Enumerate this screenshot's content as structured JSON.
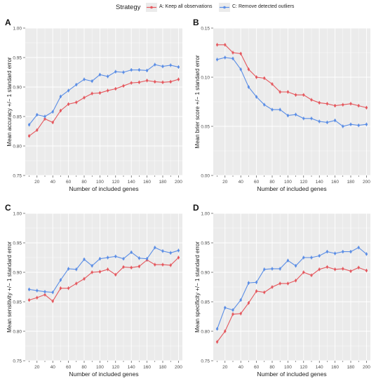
{
  "legend": {
    "title": "Strategy",
    "entries": [
      {
        "label": "A: Keep all observations",
        "color": "#e5585e"
      },
      {
        "label": "C: Remove detected outliers",
        "color": "#5b8ee6"
      }
    ]
  },
  "style": {
    "panel_background": "#ebebeb",
    "grid_color": "#ffffff",
    "series_colors": [
      "#e5585e",
      "#5b8ee6"
    ]
  },
  "chart_data": [
    {
      "type": "line",
      "panel_label": "A",
      "xlabel": "Number of included genes",
      "ylabel": "Mean accuracy +/− 1 standard error",
      "xlim": [
        5,
        205
      ],
      "ylim": [
        0.75,
        1.0
      ],
      "xticks": [
        20,
        40,
        60,
        80,
        100,
        120,
        140,
        160,
        180,
        200
      ],
      "yticks": [
        0.75,
        0.8,
        0.85,
        0.9,
        0.95,
        1.0
      ],
      "ytick_labels": [
        "0.75",
        "0.80",
        "0.85",
        "0.90",
        "0.95",
        "1.00"
      ],
      "grid": true,
      "x": [
        10,
        20,
        30,
        40,
        50,
        60,
        70,
        80,
        90,
        100,
        110,
        120,
        130,
        140,
        150,
        160,
        170,
        180,
        190,
        200
      ],
      "series": [
        {
          "name": "A: Keep all observations",
          "values": [
            0.817,
            0.827,
            0.846,
            0.84,
            0.86,
            0.871,
            0.874,
            0.882,
            0.889,
            0.89,
            0.894,
            0.897,
            0.902,
            0.907,
            0.908,
            0.911,
            0.909,
            0.908,
            0.909,
            0.913
          ]
        },
        {
          "name": "C: Remove detected outliers",
          "values": [
            0.836,
            0.853,
            0.85,
            0.858,
            0.884,
            0.894,
            0.904,
            0.913,
            0.91,
            0.921,
            0.918,
            0.926,
            0.925,
            0.929,
            0.929,
            0.928,
            0.938,
            0.935,
            0.937,
            0.934
          ]
        }
      ]
    },
    {
      "type": "line",
      "panel_label": "B",
      "xlabel": "Number of included genes",
      "ylabel": "Mean brier score +/− 1 standard error",
      "xlim": [
        5,
        205
      ],
      "ylim": [
        0.0,
        0.15
      ],
      "xticks": [
        20,
        40,
        60,
        80,
        100,
        120,
        140,
        160,
        180,
        200
      ],
      "yticks": [
        0.0,
        0.05,
        0.1,
        0.15
      ],
      "ytick_labels": [
        "0.00",
        "0.05",
        "0.10",
        "0.15"
      ],
      "grid": true,
      "x": [
        10,
        20,
        30,
        40,
        50,
        60,
        70,
        80,
        90,
        100,
        110,
        120,
        130,
        140,
        150,
        160,
        170,
        180,
        190,
        200
      ],
      "series": [
        {
          "name": "A: Keep all observations",
          "values": [
            0.133,
            0.133,
            0.125,
            0.124,
            0.108,
            0.1,
            0.099,
            0.093,
            0.085,
            0.085,
            0.082,
            0.082,
            0.077,
            0.074,
            0.073,
            0.071,
            0.072,
            0.073,
            0.071,
            0.069
          ]
        },
        {
          "name": "C: Remove detected outliers",
          "values": [
            0.118,
            0.12,
            0.119,
            0.108,
            0.09,
            0.08,
            0.072,
            0.067,
            0.067,
            0.061,
            0.062,
            0.058,
            0.058,
            0.055,
            0.054,
            0.056,
            0.05,
            0.052,
            0.051,
            0.052
          ]
        }
      ]
    },
    {
      "type": "line",
      "panel_label": "C",
      "xlabel": "Number of included genes",
      "ylabel": "Mean sensitivity +/− 1 standard error",
      "xlim": [
        5,
        205
      ],
      "ylim": [
        0.75,
        1.0
      ],
      "xticks": [
        20,
        40,
        60,
        80,
        100,
        120,
        140,
        160,
        180,
        200
      ],
      "yticks": [
        0.75,
        0.8,
        0.85,
        0.9,
        0.95,
        1.0
      ],
      "ytick_labels": [
        "0.75",
        "0.80",
        "0.85",
        "0.90",
        "0.95",
        "1.00"
      ],
      "grid": true,
      "x": [
        10,
        20,
        30,
        40,
        50,
        60,
        70,
        80,
        90,
        100,
        110,
        120,
        130,
        140,
        150,
        160,
        170,
        180,
        190,
        200
      ],
      "series": [
        {
          "name": "A: Keep all observations",
          "values": [
            0.853,
            0.857,
            0.862,
            0.851,
            0.873,
            0.873,
            0.881,
            0.889,
            0.9,
            0.901,
            0.905,
            0.896,
            0.909,
            0.908,
            0.91,
            0.921,
            0.913,
            0.913,
            0.912,
            0.925
          ]
        },
        {
          "name": "C: Remove detected outliers",
          "values": [
            0.871,
            0.869,
            0.867,
            0.866,
            0.887,
            0.906,
            0.905,
            0.922,
            0.911,
            0.923,
            0.925,
            0.927,
            0.923,
            0.934,
            0.924,
            0.923,
            0.942,
            0.936,
            0.933,
            0.937
          ]
        }
      ]
    },
    {
      "type": "line",
      "panel_label": "D",
      "xlabel": "Number of included genes",
      "ylabel": "Mean specificity +/− 1 standard error",
      "xlim": [
        5,
        205
      ],
      "ylim": [
        0.75,
        1.0
      ],
      "xticks": [
        20,
        40,
        60,
        80,
        100,
        120,
        140,
        160,
        180,
        200
      ],
      "yticks": [
        0.75,
        0.8,
        0.85,
        0.9,
        0.95,
        1.0
      ],
      "ytick_labels": [
        "0.75",
        "0.80",
        "0.85",
        "0.90",
        "0.95",
        "1.00"
      ],
      "grid": true,
      "x": [
        10,
        20,
        30,
        40,
        50,
        60,
        70,
        80,
        90,
        100,
        110,
        120,
        130,
        140,
        150,
        160,
        170,
        180,
        190,
        200
      ],
      "series": [
        {
          "name": "A: Keep all observations",
          "values": [
            0.782,
            0.8,
            0.829,
            0.83,
            0.848,
            0.868,
            0.866,
            0.875,
            0.881,
            0.881,
            0.886,
            0.9,
            0.895,
            0.905,
            0.909,
            0.905,
            0.906,
            0.902,
            0.908,
            0.903
          ]
        },
        {
          "name": "C: Remove detected outliers",
          "values": [
            0.804,
            0.84,
            0.836,
            0.853,
            0.882,
            0.883,
            0.905,
            0.906,
            0.906,
            0.92,
            0.911,
            0.925,
            0.925,
            0.928,
            0.935,
            0.932,
            0.935,
            0.935,
            0.942,
            0.931
          ]
        }
      ]
    }
  ]
}
